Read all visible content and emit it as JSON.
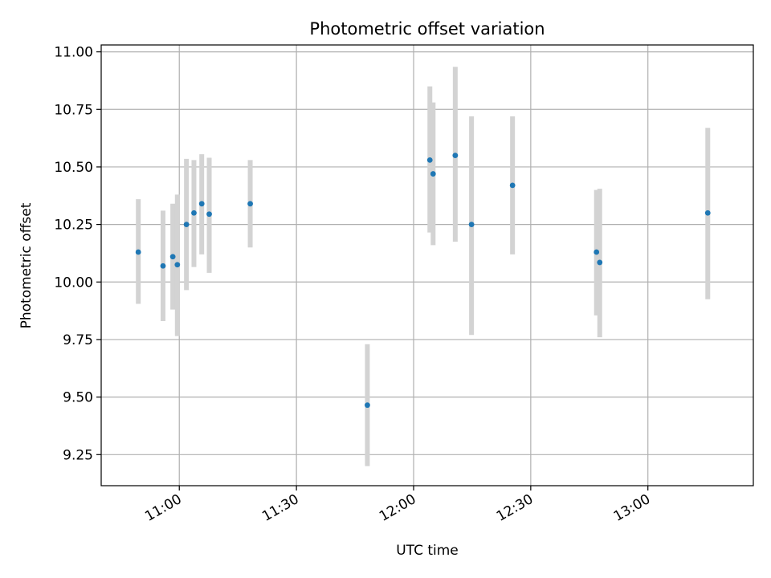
{
  "chart_data": {
    "type": "scatter",
    "title": "Photometric offset variation",
    "xlabel": "UTC time",
    "ylabel": "Photometric offset",
    "x_axis": "time",
    "xlim": [
      "10:40",
      "13:27"
    ],
    "ylim": [
      9.115,
      11.03
    ],
    "x_ticks": [
      "11:00",
      "11:30",
      "12:00",
      "12:30",
      "13:00"
    ],
    "y_ticks": [
      9.25,
      9.5,
      9.75,
      10.0,
      10.25,
      10.5,
      10.75,
      11.0
    ],
    "y_tick_labels": [
      "9.25",
      "9.50",
      "9.75",
      "10.00",
      "10.25",
      "10.50",
      "10.75",
      "11.00"
    ],
    "grid": true,
    "point_color": "#1f77b4",
    "errorbar_color": "#d3d3d3",
    "points": [
      {
        "x": "10:49:30",
        "y": 10.13,
        "ylow": 9.905,
        "yhigh": 10.36
      },
      {
        "x": "10:55:50",
        "y": 10.07,
        "ylow": 9.83,
        "yhigh": 10.31
      },
      {
        "x": "10:58:20",
        "y": 10.11,
        "ylow": 9.88,
        "yhigh": 10.34
      },
      {
        "x": "10:59:30",
        "y": 10.075,
        "ylow": 9.765,
        "yhigh": 10.38
      },
      {
        "x": "11:01:50",
        "y": 10.25,
        "ylow": 9.965,
        "yhigh": 10.535
      },
      {
        "x": "11:03:45",
        "y": 10.3,
        "ylow": 10.065,
        "yhigh": 10.53
      },
      {
        "x": "11:05:45",
        "y": 10.34,
        "ylow": 10.12,
        "yhigh": 10.555
      },
      {
        "x": "11:07:40",
        "y": 10.295,
        "ylow": 10.04,
        "yhigh": 10.54
      },
      {
        "x": "11:18:10",
        "y": 10.34,
        "ylow": 10.15,
        "yhigh": 10.53
      },
      {
        "x": "11:48:10",
        "y": 9.465,
        "ylow": 9.2,
        "yhigh": 9.73
      },
      {
        "x": "12:04:10",
        "y": 10.53,
        "ylow": 10.215,
        "yhigh": 10.85
      },
      {
        "x": "12:05:00",
        "y": 10.47,
        "ylow": 10.16,
        "yhigh": 10.78
      },
      {
        "x": "12:10:40",
        "y": 10.55,
        "ylow": 10.175,
        "yhigh": 10.935
      },
      {
        "x": "12:14:50",
        "y": 10.25,
        "ylow": 9.77,
        "yhigh": 10.72
      },
      {
        "x": "12:25:20",
        "y": 10.42,
        "ylow": 10.12,
        "yhigh": 10.72
      },
      {
        "x": "12:46:50",
        "y": 10.13,
        "ylow": 9.855,
        "yhigh": 10.4
      },
      {
        "x": "12:47:40",
        "y": 10.085,
        "ylow": 9.76,
        "yhigh": 10.405
      },
      {
        "x": "13:15:20",
        "y": 10.3,
        "ylow": 9.925,
        "yhigh": 10.67
      }
    ]
  }
}
